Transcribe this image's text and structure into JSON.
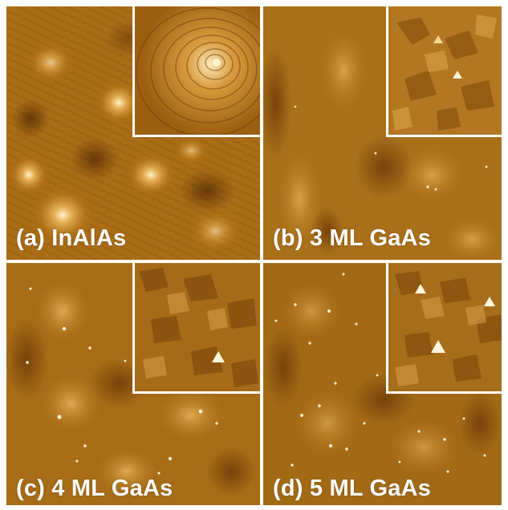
{
  "figure": {
    "panels": [
      {
        "id": "a",
        "label": "(a) InAlAs"
      },
      {
        "id": "b",
        "label": "(b) 3 ML GaAs"
      },
      {
        "id": "c",
        "label": "(c) 4 ML GaAs"
      },
      {
        "id": "d",
        "label": "(d) 5 ML GaAs"
      }
    ]
  },
  "colors": {
    "divider": "#ffffff",
    "afm_dark": "#6a3a05",
    "afm_mid": "#b07317",
    "afm_light": "#e9b860",
    "afm_bright": "#fff1c8"
  }
}
